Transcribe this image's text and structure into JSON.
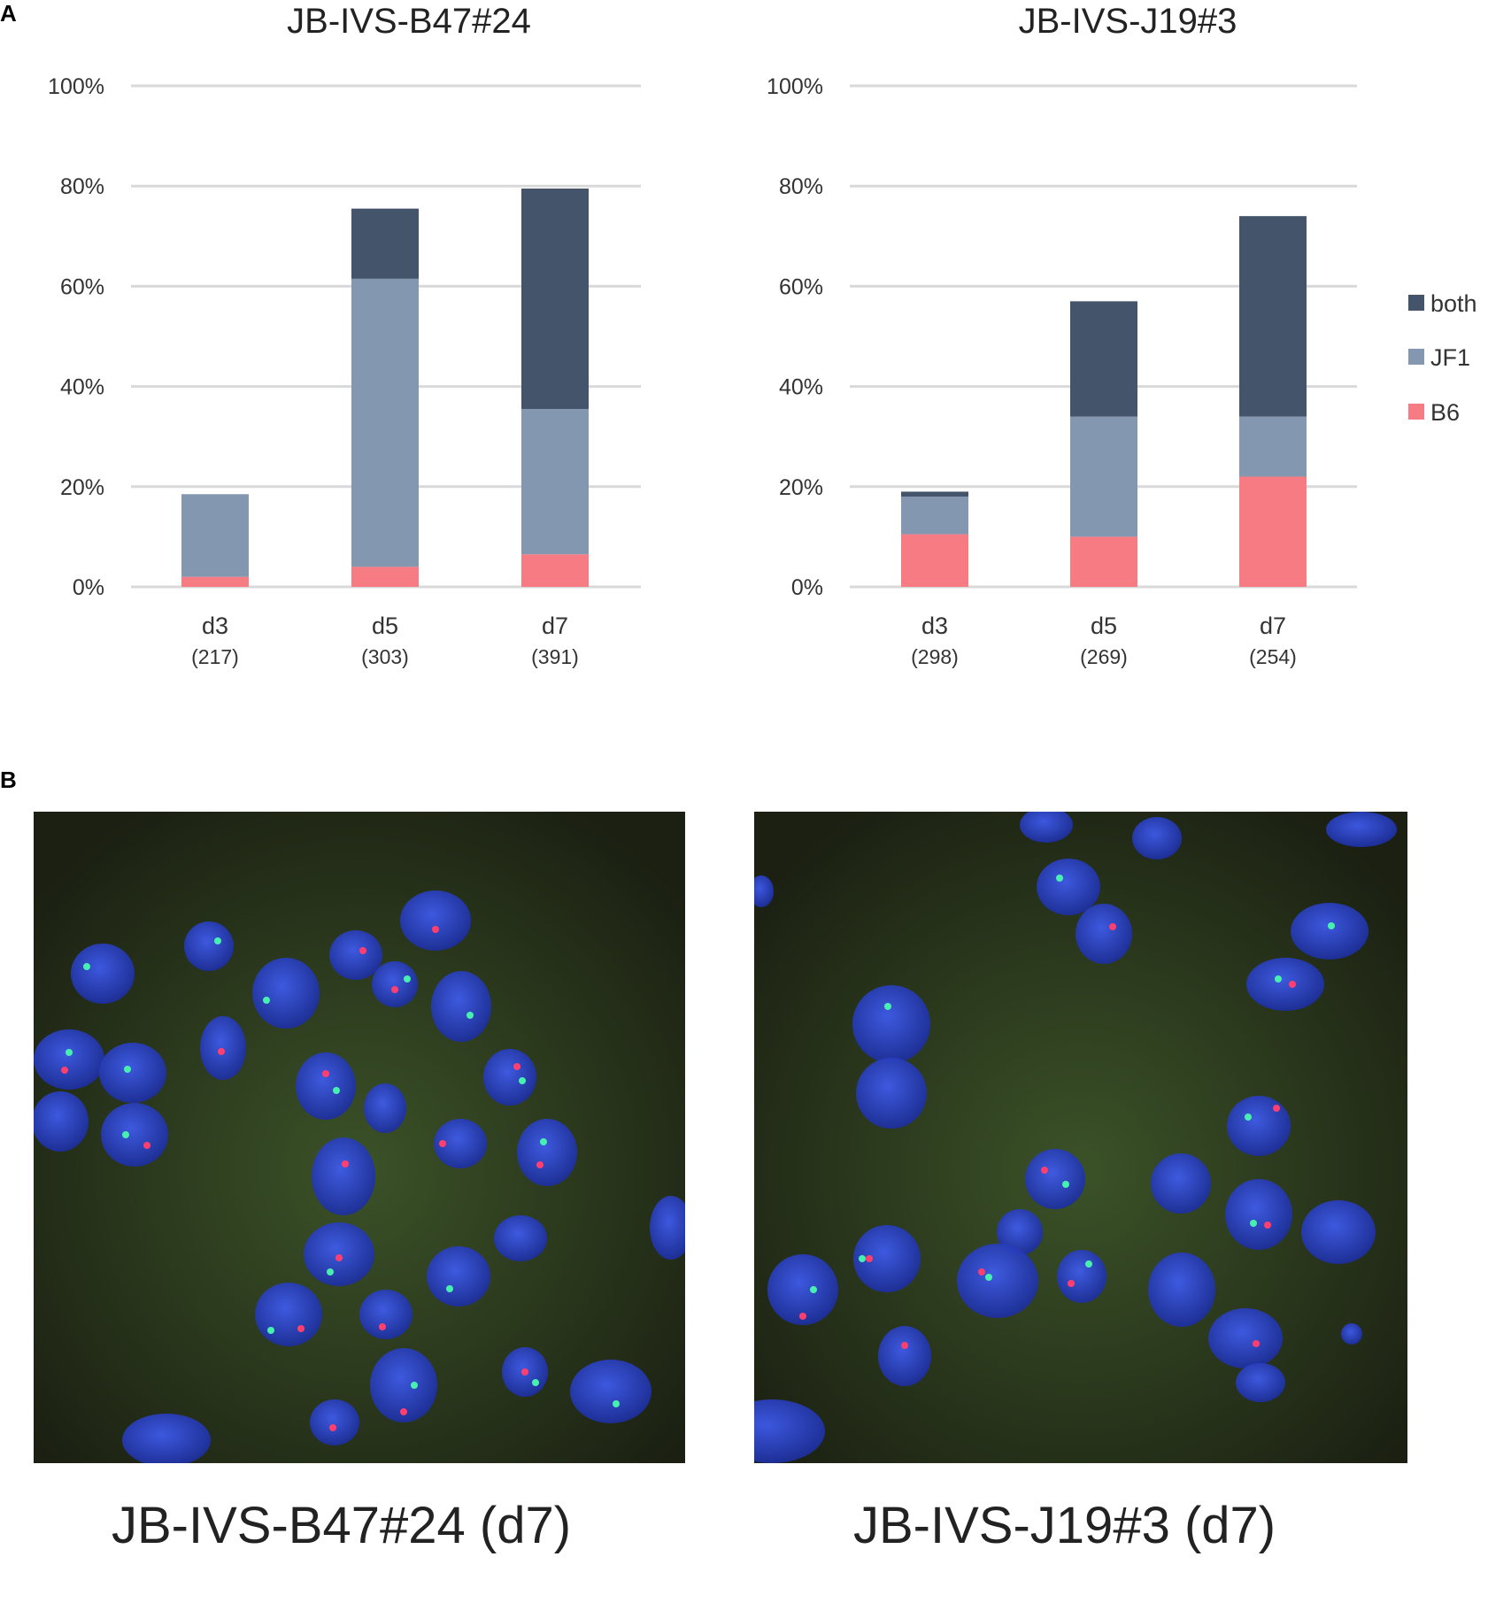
{
  "panels": {
    "a_label": "A",
    "b_label": "B"
  },
  "chart_data": [
    {
      "type": "bar",
      "stacked": true,
      "title": "JB-IVS-B47#24",
      "categories": [
        "d3",
        "d5",
        "d7"
      ],
      "category_counts": [
        "(217)",
        "(303)",
        "(391)"
      ],
      "series": [
        {
          "name": "B6",
          "color": "#f77b82",
          "values": [
            2,
            4,
            6.5
          ]
        },
        {
          "name": "JF1",
          "color": "#8497b0",
          "values": [
            16.5,
            57.5,
            29
          ]
        },
        {
          "name": "both",
          "color": "#44546a",
          "values": [
            0,
            14,
            44
          ]
        }
      ],
      "ylim": [
        0,
        100
      ],
      "yticks": [
        "0%",
        "20%",
        "40%",
        "60%",
        "80%",
        "100%"
      ],
      "grid": true
    },
    {
      "type": "bar",
      "stacked": true,
      "title": "JB-IVS-J19#3",
      "categories": [
        "d3",
        "d5",
        "d7"
      ],
      "category_counts": [
        "(298)",
        "(269)",
        "(254)"
      ],
      "series": [
        {
          "name": "B6",
          "color": "#f77b82",
          "values": [
            10.5,
            10,
            22
          ]
        },
        {
          "name": "JF1",
          "color": "#8497b0",
          "values": [
            7.5,
            24,
            12
          ]
        },
        {
          "name": "both",
          "color": "#44546a",
          "values": [
            1,
            23,
            40
          ]
        }
      ],
      "ylim": [
        0,
        100
      ],
      "yticks": [
        "0%",
        "20%",
        "40%",
        "60%",
        "80%",
        "100%"
      ],
      "grid": true
    }
  ],
  "legend": {
    "placement": "right",
    "items": [
      {
        "label": "both",
        "color": "#44546a"
      },
      {
        "label": "JF1",
        "color": "#8497b0"
      },
      {
        "label": "B6",
        "color": "#f77b82"
      }
    ]
  },
  "micrographs": {
    "left_caption": "JB-IVS-B47#24 (d7)",
    "right_caption": "JB-IVS-J19#3 (d7)"
  }
}
